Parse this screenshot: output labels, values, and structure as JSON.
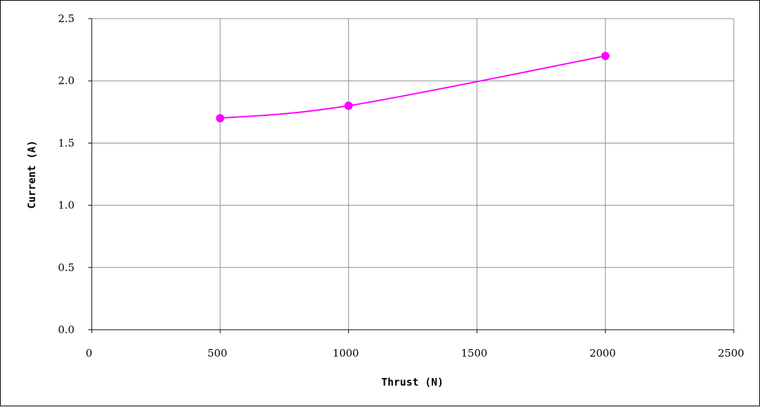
{
  "chart_data": {
    "type": "line",
    "xlabel": "Thrust (N)",
    "ylabel": "Current (A)",
    "xlim": [
      0,
      2500
    ],
    "ylim": [
      0,
      2.5
    ],
    "x_ticks": [
      "0",
      "500",
      "1000",
      "1500",
      "2000",
      "2500"
    ],
    "y_ticks": [
      "0.0",
      "0.5",
      "1.0",
      "1.5",
      "2.0",
      "2.5"
    ],
    "grid": true,
    "series": [
      {
        "color": "#ff00ff",
        "x": [
          500,
          1000,
          2000
        ],
        "y": [
          1.7,
          1.8,
          2.2
        ]
      }
    ]
  }
}
